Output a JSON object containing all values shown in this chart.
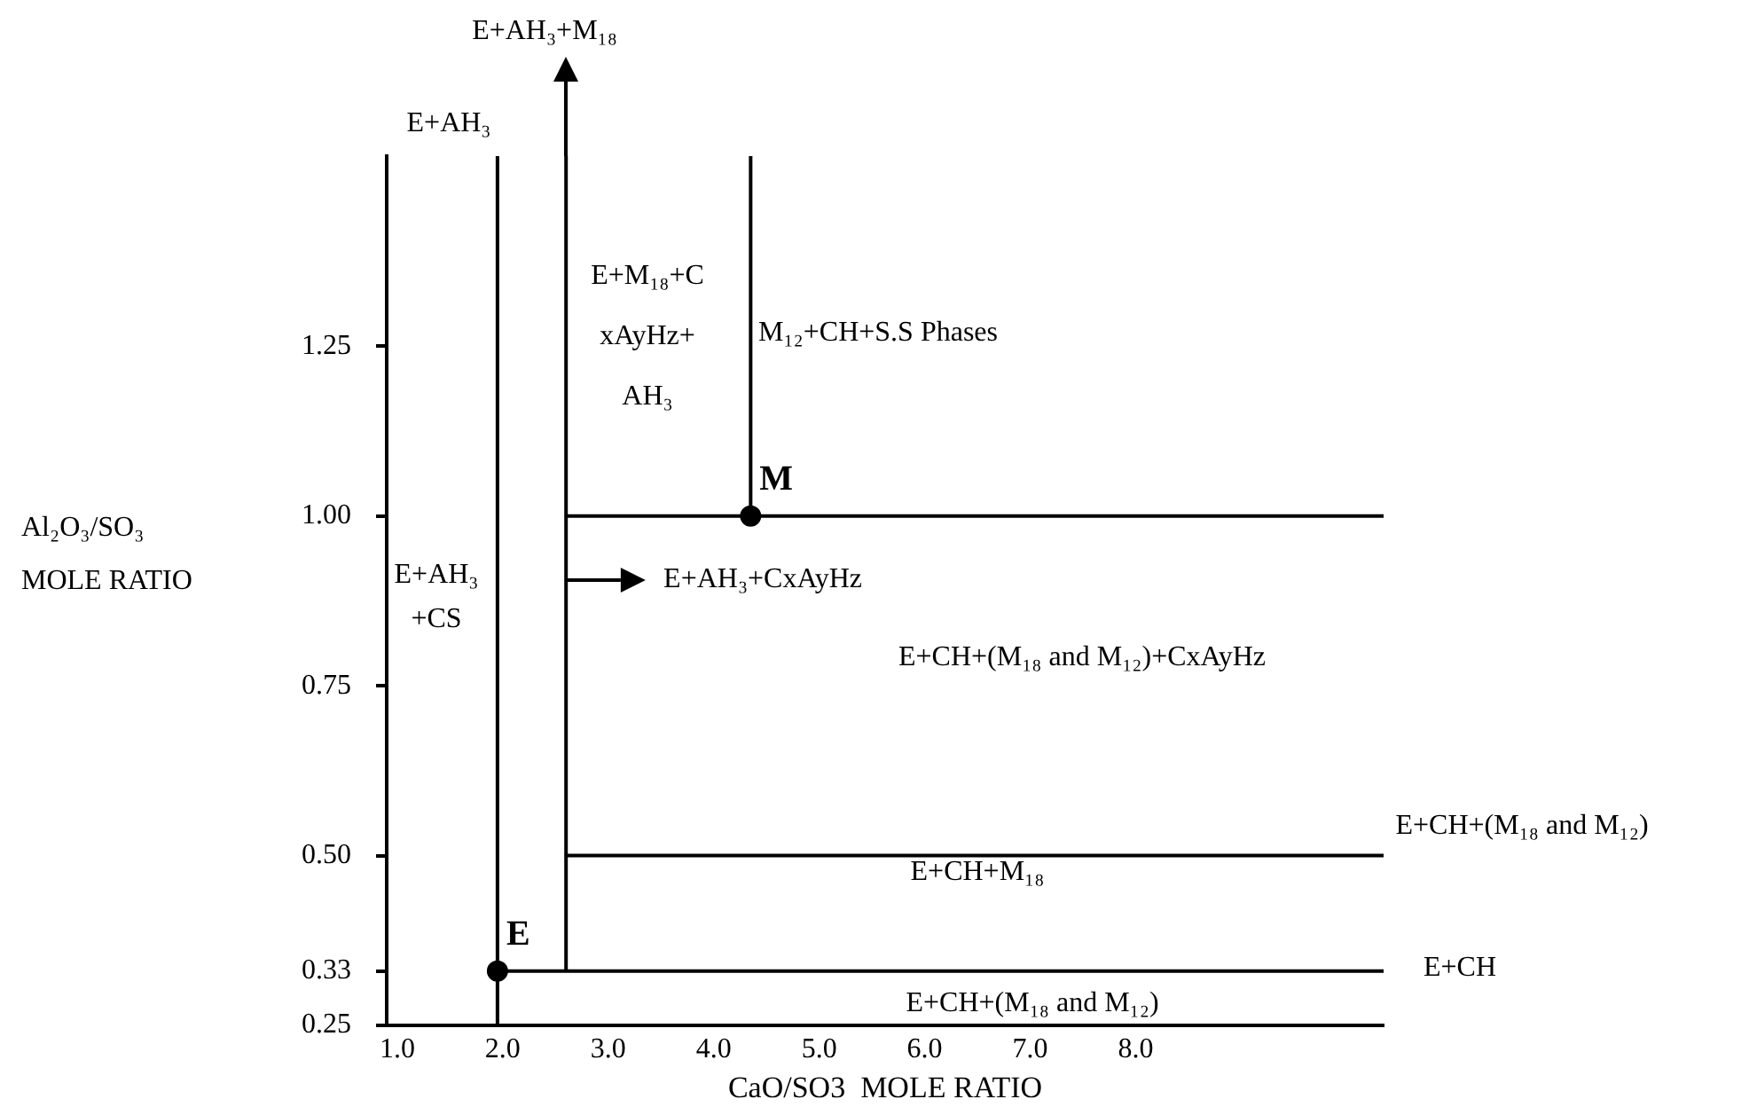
{
  "chart_data": {
    "type": "line",
    "xlabel": "CaO/SO3  MOLE RATIO",
    "ylabel": "Al₂O₃/SO₃\nMOLE RATIO",
    "xlim": [
      0.9,
      10.35
    ],
    "ylim": [
      0.25,
      1.53
    ],
    "grid": false,
    "marker": "none",
    "xticks": [
      {
        "value": 1,
        "label": "1.0"
      },
      {
        "value": 2,
        "label": "2.0"
      },
      {
        "value": 3,
        "label": "3.0"
      },
      {
        "value": 4,
        "label": "4.0"
      },
      {
        "value": 5,
        "label": "5.0"
      },
      {
        "value": 6,
        "label": "6.0"
      },
      {
        "value": 7,
        "label": "7.0"
      },
      {
        "value": 8,
        "label": "8.0"
      }
    ],
    "yticks": [
      {
        "value": 0.25,
        "label": "0.25"
      },
      {
        "value": 0.33,
        "label": "0.33"
      },
      {
        "value": 0.5,
        "label": "0.50"
      },
      {
        "value": 0.75,
        "label": "0.75"
      },
      {
        "value": 1,
        "label": "1.00"
      },
      {
        "value": 1.25,
        "label": "1.25"
      }
    ],
    "series": [
      {
        "color": "#000000",
        "x": [
          1.95,
          1.95
        ],
        "values": [
          0.25,
          1.53
        ]
      },
      {
        "color": "#000000",
        "x": [
          2.6,
          2.6
        ],
        "values": [
          0.33,
          1.53
        ]
      },
      {
        "color": "#000000",
        "x": [
          4.35,
          4.35
        ],
        "values": [
          1.0,
          1.53
        ]
      },
      {
        "color": "#000000",
        "x": [
          2.6,
          10.35
        ],
        "values": [
          1.0,
          1.0
        ]
      },
      {
        "color": "#000000",
        "x": [
          2.6,
          10.35
        ],
        "values": [
          0.5,
          0.5
        ]
      },
      {
        "color": "#000000",
        "x": [
          1.95,
          10.35
        ],
        "values": [
          0.33,
          0.33
        ]
      },
      {
        "type": "scatter",
        "marker": "circle",
        "name": "E",
        "color": "#000000",
        "x": [
          1.95
        ],
        "values": [
          0.33
        ]
      },
      {
        "type": "scatter",
        "marker": "circle",
        "name": "M",
        "color": "#000000",
        "x": [
          4.35
        ],
        "values": [
          1.0
        ]
      }
    ],
    "annotations": [
      "E+AH₃+M₁₈",
      "E+AH₃",
      "E+M₁₈+C\nxAyHz+\nAH₃",
      "M₁₂+CH+S.S Phases",
      "E+AH₃\n+CS",
      "E+AH₃+CxAyHz",
      "E+CH+(M₁₈ and M₁₂)+CxAyHz",
      "E+CH+(M₁₈ and M₁₂)",
      "E+CH+M₁₈",
      "E+CH",
      "E+CH+(M₁₈ and M₁₂)"
    ]
  }
}
